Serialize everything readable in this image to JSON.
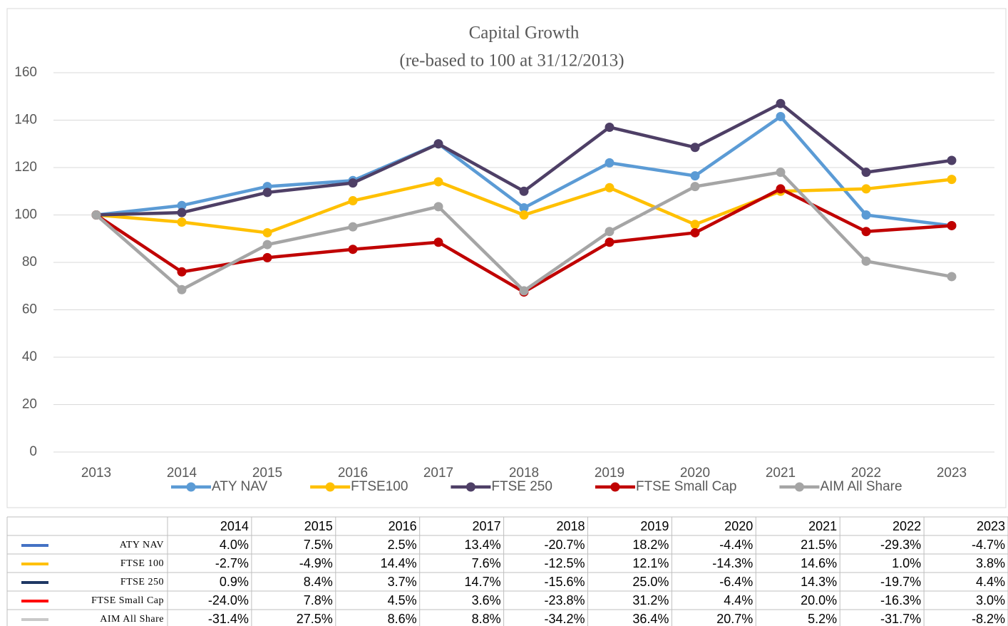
{
  "chart_data": {
    "type": "line",
    "title": "Capital Growth",
    "subtitle": "(re-based to 100 at 31/12/2013)",
    "categories": [
      "2013",
      "2014",
      "2015",
      "2016",
      "2017",
      "2018",
      "2019",
      "2020",
      "2021",
      "2022",
      "2023"
    ],
    "series": [
      {
        "name": "ATY NAV",
        "color": "#5b9bd5",
        "values": [
          100,
          104,
          112,
          114.5,
          130,
          103,
          122,
          116.5,
          141.5,
          100,
          95.5
        ]
      },
      {
        "name": "FTSE100",
        "color": "#ffc000",
        "values": [
          100,
          97,
          92.5,
          106,
          114,
          100,
          111.5,
          96,
          110,
          111,
          115
        ]
      },
      {
        "name": "FTSE 250",
        "color": "#4e3f66",
        "values": [
          100,
          101,
          109.5,
          113.5,
          130,
          110,
          137,
          128.5,
          147,
          118,
          123
        ]
      },
      {
        "name": "FTSE Small Cap",
        "color": "#c00000",
        "values": [
          100,
          76,
          82,
          85.5,
          88.5,
          67.5,
          88.5,
          92.5,
          111,
          93,
          95.5
        ]
      },
      {
        "name": "AIM All Share",
        "color": "#a5a5a5",
        "values": [
          100,
          68.5,
          87.5,
          95,
          103.5,
          68,
          93,
          112,
          118,
          80.5,
          74
        ]
      }
    ],
    "ylim": [
      0,
      160
    ],
    "yticks": [
      0,
      20,
      40,
      60,
      80,
      100,
      120,
      140,
      160
    ],
    "grid": true,
    "legend": "bottom"
  },
  "table": {
    "columns": [
      "2014",
      "2015",
      "2016",
      "2017",
      "2018",
      "2019",
      "2020",
      "2021",
      "2022",
      "2023"
    ],
    "rows": [
      {
        "label": "ATY NAV",
        "color": "#4472c4",
        "values": [
          "4.0%",
          "7.5%",
          "2.5%",
          "13.4%",
          "-20.7%",
          "18.2%",
          "-4.4%",
          "21.5%",
          "-29.3%",
          "-4.7%"
        ]
      },
      {
        "label": "FTSE 100",
        "color": "#ffc000",
        "values": [
          "-2.7%",
          "-4.9%",
          "14.4%",
          "7.6%",
          "-12.5%",
          "12.1%",
          "-14.3%",
          "14.6%",
          "1.0%",
          "3.8%"
        ]
      },
      {
        "label": "FTSE 250",
        "color": "#1f3864",
        "values": [
          "0.9%",
          "8.4%",
          "3.7%",
          "14.7%",
          "-15.6%",
          "25.0%",
          "-6.4%",
          "14.3%",
          "-19.7%",
          "4.4%"
        ]
      },
      {
        "label": "FTSE Small Cap",
        "color": "#ff0000",
        "values": [
          "-24.0%",
          "7.8%",
          "4.5%",
          "3.6%",
          "-23.8%",
          "31.2%",
          "4.4%",
          "20.0%",
          "-16.3%",
          "3.0%"
        ]
      },
      {
        "label": "AIM All Share",
        "color": "#c9c9c9",
        "values": [
          "-31.4%",
          "27.5%",
          "8.6%",
          "8.8%",
          "-34.2%",
          "36.4%",
          "20.7%",
          "5.2%",
          "-31.7%",
          "-8.2%"
        ]
      }
    ]
  }
}
